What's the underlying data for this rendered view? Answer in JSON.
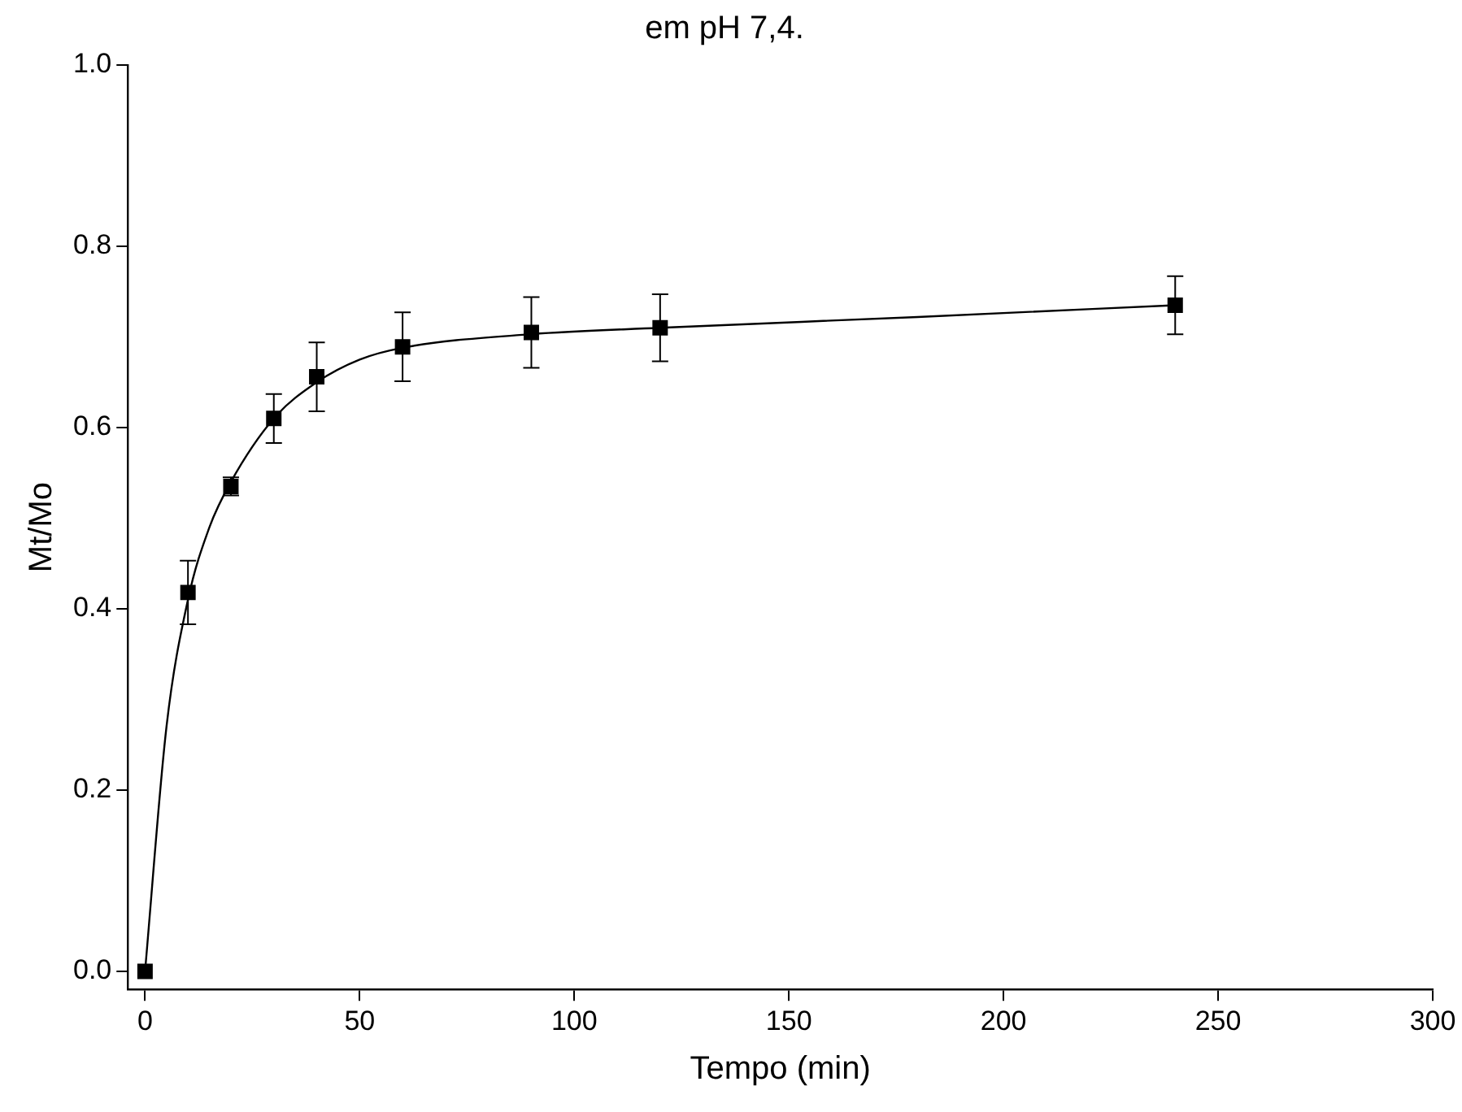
{
  "chart_data": {
    "type": "scatter",
    "title": "em pH 7,4.",
    "xlabel": "Tempo (min)",
    "ylabel": "Mt/Mo",
    "xlim": [
      -4,
      300
    ],
    "xticks": [
      0,
      50,
      100,
      150,
      200,
      250,
      300
    ],
    "ylim": [
      -0.02,
      1.0
    ],
    "yticks": [
      {
        "value": 0,
        "label": "0.0"
      },
      {
        "value": 0.2,
        "label": "0.2"
      },
      {
        "value": 0.4,
        "label": "0.4"
      },
      {
        "value": 0.6,
        "label": "0.6"
      },
      {
        "value": 0.8,
        "label": "0.8"
      },
      {
        "value": 1.0,
        "label": "1.0"
      }
    ],
    "grid": false,
    "legend": false,
    "series": [
      {
        "type": "line",
        "marker": "none",
        "color": "#000000",
        "x": [
          0,
          5,
          10,
          15,
          20,
          30,
          40,
          50,
          60,
          90,
          120,
          180,
          240
        ],
        "values": [
          0,
          0.27,
          0.41,
          0.49,
          0.54,
          0.61,
          0.65,
          0.675,
          0.688,
          0.703,
          0.71,
          0.722,
          0.735
        ]
      },
      {
        "marker": "square",
        "color": "#000000",
        "x": [
          0,
          10,
          20,
          30,
          40,
          60,
          90,
          120,
          240
        ],
        "values": [
          0,
          0.418,
          0.535,
          0.61,
          0.656,
          0.689,
          0.705,
          0.71,
          0.735
        ],
        "errors": [
          null,
          0.035,
          0.01,
          0.027,
          0.038,
          0.038,
          0.039,
          0.037,
          0.032
        ]
      }
    ]
  }
}
